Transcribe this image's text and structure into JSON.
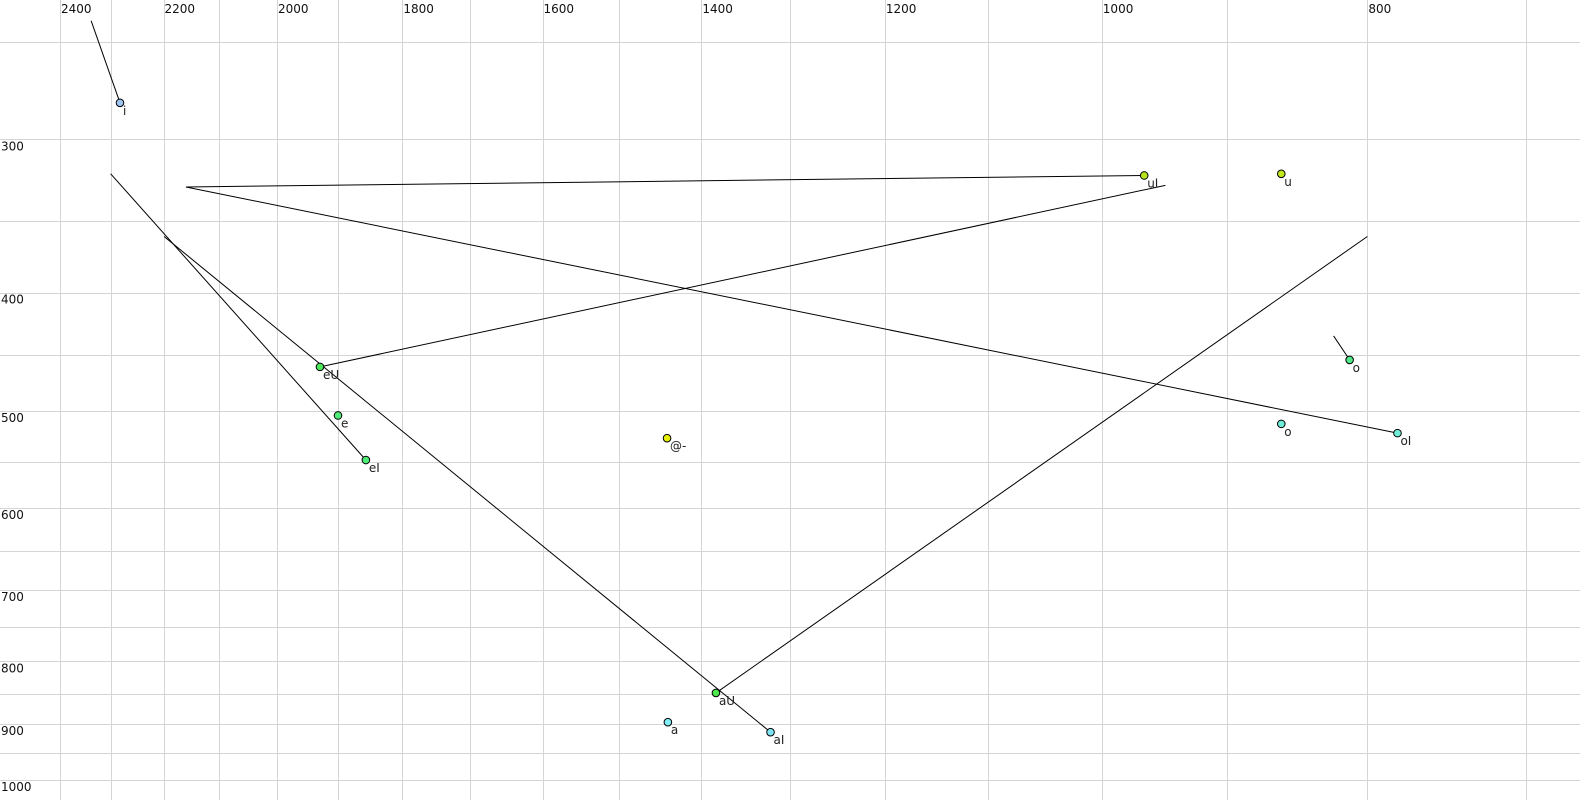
{
  "chart_data": {
    "type": "scatter",
    "title": "",
    "xlabel": "",
    "ylabel": "",
    "x_scale": "log",
    "y_scale": "log",
    "x_reversed": true,
    "y_reversed": true,
    "xlim": [
      2400,
      700
    ],
    "ylim": [
      250,
      1000
    ],
    "grid": true,
    "x_gridlines": [
      2400,
      2300,
      2200,
      2100,
      2000,
      1900,
      1800,
      1700,
      1600,
      1500,
      1400,
      1300,
      1200,
      1100,
      1000,
      900,
      800,
      700
    ],
    "y_gridlines": [
      250,
      300,
      350,
      400,
      450,
      500,
      550,
      600,
      650,
      700,
      750,
      800,
      850,
      900,
      950,
      1000
    ],
    "x_ticks": [
      "2400",
      "2200",
      "2000",
      "1800",
      "1600",
      "1400",
      "1200",
      "1000",
      "800"
    ],
    "y_ticks": [
      "300",
      "400",
      "500",
      "600",
      "700",
      "800",
      "900",
      "1000"
    ],
    "points": [
      {
        "label": "i",
        "f2": 2282,
        "f1": 280,
        "color": "#9cc6f2",
        "trajectory_end": {
          "f2": 2338,
          "f1": 240
        }
      },
      {
        "label": "uI",
        "f2": 965,
        "f1": 321,
        "color": "#b4e41c",
        "trajectory_end": {
          "f2": 2159,
          "f1": 328
        }
      },
      {
        "label": "u",
        "f2": 860,
        "f1": 320,
        "color": "#c0e81c"
      },
      {
        "label": "o",
        "f2": 812,
        "f1": 454,
        "color": "#50e888",
        "label_color": "#777799",
        "trajectory_end": {
          "f2": 823,
          "f1": 434
        },
        "trajectory_color": "#666666"
      },
      {
        "label": "o",
        "f2": 860,
        "f1": 512,
        "color": "#70ecd8"
      },
      {
        "label": "oI",
        "f2": 780,
        "f1": 521,
        "color": "#70ecd8",
        "trajectory_end": {
          "f2": 2159,
          "f1": 328
        }
      },
      {
        "label": "eU",
        "f2": 1929,
        "f1": 460,
        "color": "#4ce85c",
        "trajectory_end": {
          "f2": 948,
          "f1": 327
        }
      },
      {
        "label": "e",
        "f2": 1900,
        "f1": 504,
        "color": "#50ec78"
      },
      {
        "label": "eI",
        "f2": 1856,
        "f1": 548,
        "color": "#50ec78",
        "trajectory_end": {
          "f2": 2300,
          "f1": 320
        }
      },
      {
        "label": "@-",
        "f2": 1441,
        "f1": 526,
        "color": "#e4f000"
      },
      {
        "label": "aU",
        "f2": 1383,
        "f1": 849,
        "color": "#4ce84c",
        "trajectory_end": {
          "f2": 800,
          "f1": 360
        }
      },
      {
        "label": "a",
        "f2": 1440,
        "f1": 897,
        "color": "#80eef4"
      },
      {
        "label": "aI",
        "f2": 1321,
        "f1": 914,
        "color": "#80e4f4",
        "trajectory_end": {
          "f2": 2199,
          "f1": 360
        }
      }
    ]
  }
}
